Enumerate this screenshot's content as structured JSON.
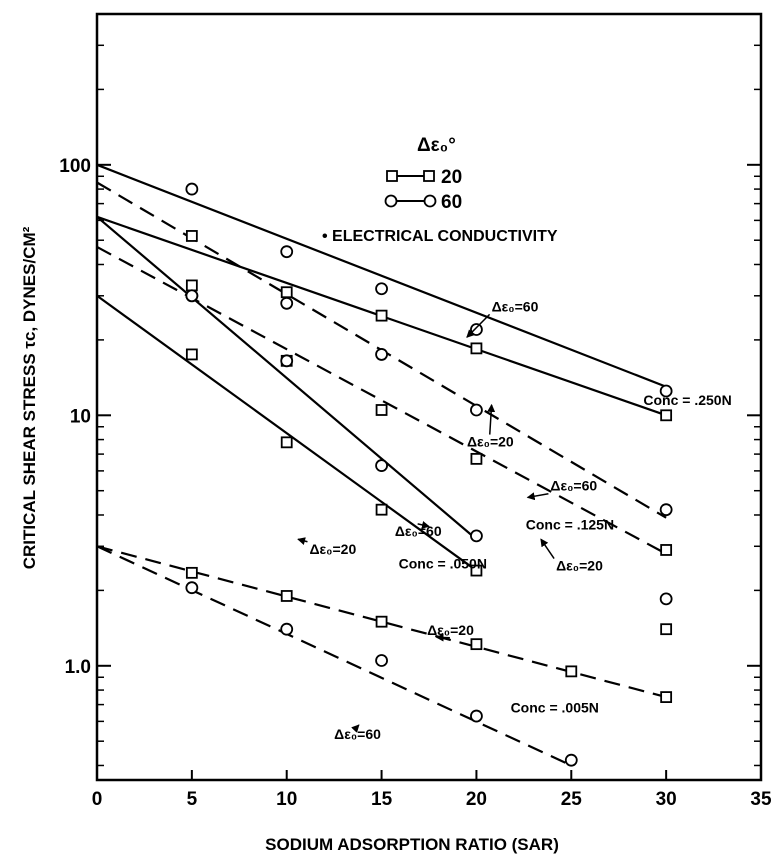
{
  "chart_data": {
    "type": "line",
    "title": "",
    "xlabel": "SODIUM ADSORPTION RATIO (SAR)",
    "ylabel": "CRITICAL SHEAR STRESS τc, DYNES/CM²",
    "x_scale": "linear",
    "y_scale": "log",
    "xlim": [
      0,
      35
    ],
    "ylim": [
      0.35,
      400
    ],
    "x_ticks": [
      "0",
      "5",
      "10",
      "15",
      "20",
      "25",
      "30",
      "35"
    ],
    "y_ticks": [
      "1.0",
      "10",
      "100"
    ],
    "grid": false,
    "legend": {
      "title": "Δε₀°",
      "items": [
        {
          "marker": "square",
          "label": "20"
        },
        {
          "marker": "circle",
          "label": "60"
        }
      ],
      "note": "• ELECTRICAL CONDUCTIVITY"
    },
    "series": [
      {
        "marker": "circle",
        "style": "solid",
        "fit": [
          [
            0,
            100
          ],
          [
            30,
            13
          ]
        ],
        "points": [
          [
            5,
            80
          ],
          [
            10,
            45
          ],
          [
            15,
            32
          ],
          [
            20,
            22
          ],
          [
            30,
            12.5
          ]
        ]
      },
      {
        "marker": "square",
        "style": "solid",
        "fit": [
          [
            0,
            62
          ],
          [
            30,
            10
          ]
        ],
        "points": [
          [
            5,
            33
          ],
          [
            10,
            31
          ],
          [
            15,
            25
          ],
          [
            20,
            18.5
          ],
          [
            30,
            10
          ]
        ]
      },
      {
        "marker": "circle",
        "style": "dashed",
        "fit": [
          [
            0,
            85
          ],
          [
            30,
            3.9
          ]
        ],
        "points": [
          [
            5,
            30
          ],
          [
            10,
            28
          ],
          [
            15,
            17.5
          ],
          [
            20,
            10.5
          ],
          [
            30,
            4.2
          ]
        ]
      },
      {
        "marker": "square",
        "style": "dashed",
        "fit": [
          [
            0,
            47
          ],
          [
            30,
            2.8
          ]
        ],
        "points": [
          [
            5,
            52
          ],
          [
            10,
            16.5
          ],
          [
            15,
            10.5
          ],
          [
            20,
            6.7
          ],
          [
            30,
            2.9
          ]
        ]
      },
      {
        "marker": "circle",
        "style": "solid",
        "fit": [
          [
            0,
            62
          ],
          [
            20,
            3.2
          ]
        ],
        "points": [
          [
            5,
            30
          ],
          [
            10,
            16.5
          ],
          [
            15,
            6.3
          ],
          [
            20,
            3.3
          ]
        ]
      },
      {
        "marker": "square",
        "style": "solid",
        "fit": [
          [
            0,
            30
          ],
          [
            20,
            2.4
          ]
        ],
        "points": [
          [
            5,
            17.5
          ],
          [
            10,
            7.8
          ],
          [
            15,
            4.2
          ],
          [
            20,
            2.4
          ]
        ]
      },
      {
        "marker": "square",
        "style": "dashed",
        "fit": [
          [
            0,
            3
          ],
          [
            30,
            0.75
          ]
        ],
        "points": [
          [
            5,
            2.35
          ],
          [
            10,
            1.9
          ],
          [
            15,
            1.5
          ],
          [
            20,
            1.22
          ],
          [
            25,
            0.95
          ],
          [
            30,
            0.75
          ]
        ]
      },
      {
        "marker": "circle",
        "style": "dashed",
        "fit": [
          [
            0,
            3
          ],
          [
            25,
            0.4
          ]
        ],
        "points": [
          [
            5,
            2.05
          ],
          [
            10,
            1.4
          ],
          [
            15,
            1.05
          ],
          [
            20,
            0.63
          ],
          [
            25,
            0.42
          ]
        ]
      },
      {
        "marker": "circle",
        "style": "none",
        "points": [
          [
            30,
            1.85
          ]
        ]
      },
      {
        "marker": "square",
        "style": "none",
        "points": [
          [
            30,
            1.4
          ]
        ]
      }
    ],
    "annotations": [
      {
        "text": "Δε₀=60",
        "x": 20.8,
        "y": 26,
        "arrow_to": [
          19.5,
          20.5
        ]
      },
      {
        "text": "Δε₀=20",
        "x": 19.5,
        "y": 7.5,
        "arrow_to": [
          20.8,
          11
        ]
      },
      {
        "text": "Conc = .250N",
        "x": 28.8,
        "y": 11
      },
      {
        "text": "Δε₀=60",
        "x": 23.9,
        "y": 5.0,
        "arrow_to": [
          22.7,
          4.7
        ]
      },
      {
        "text": "Conc = .125N",
        "x": 22.6,
        "y": 3.5
      },
      {
        "text": "Δε₀=20",
        "x": 24.2,
        "y": 2.4,
        "arrow_to": [
          23.4,
          3.2
        ]
      },
      {
        "text": "Δε₀=60",
        "x": 15.7,
        "y": 3.3,
        "arrow_to": [
          17.5,
          3.6
        ]
      },
      {
        "text": "Δε₀=20",
        "x": 11.2,
        "y": 2.8,
        "arrow_to": [
          10.6,
          3.2
        ]
      },
      {
        "text": "Conc = .050N",
        "x": 15.9,
        "y": 2.45
      },
      {
        "text": "Δε₀=20",
        "x": 17.4,
        "y": 1.33,
        "arrow_to": [
          17.9,
          1.3
        ]
      },
      {
        "text": "Conc = .005N",
        "x": 21.8,
        "y": 0.65
      },
      {
        "text": "Δε₀=60",
        "x": 12.5,
        "y": 0.51,
        "arrow_to": [
          13.8,
          0.58
        ]
      }
    ]
  }
}
